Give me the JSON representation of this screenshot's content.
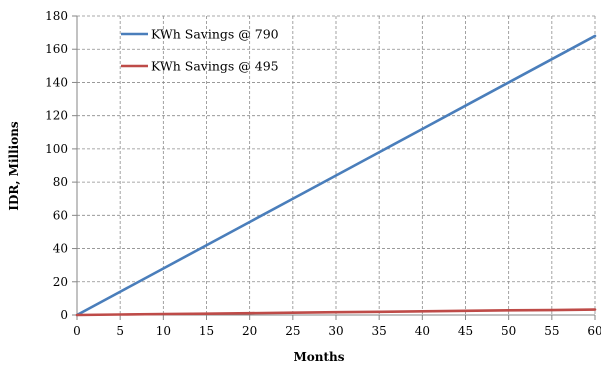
{
  "chart_data": {
    "type": "line",
    "title": "",
    "xlabel": "Months",
    "ylabel": "IDR, Millions",
    "xlim": [
      0,
      60
    ],
    "ylim": [
      0,
      180
    ],
    "x_ticks": [
      0,
      5,
      10,
      15,
      20,
      25,
      30,
      35,
      40,
      45,
      50,
      55,
      60
    ],
    "y_ticks": [
      0,
      20,
      40,
      60,
      80,
      100,
      120,
      140,
      160,
      180
    ],
    "grid": true,
    "grid_style": "dashed",
    "legend_position": "top-left",
    "series": [
      {
        "name": "KWh Savings @ 790",
        "color": "#4a7ebb",
        "x": [
          0,
          5,
          10,
          15,
          20,
          25,
          30,
          35,
          40,
          45,
          50,
          55,
          60
        ],
        "values": [
          0,
          14,
          28,
          42,
          56,
          70,
          84,
          98,
          112,
          126,
          140,
          154,
          168
        ]
      },
      {
        "name": "KWh Savings @ 495",
        "color": "#be4b48",
        "x": [
          0,
          5,
          10,
          15,
          20,
          25,
          30,
          35,
          40,
          45,
          50,
          55,
          60
        ],
        "values": [
          0,
          0.3,
          0.6,
          0.8,
          1.1,
          1.4,
          1.7,
          1.9,
          2.2,
          2.5,
          2.8,
          3.0,
          3.3
        ]
      }
    ]
  }
}
